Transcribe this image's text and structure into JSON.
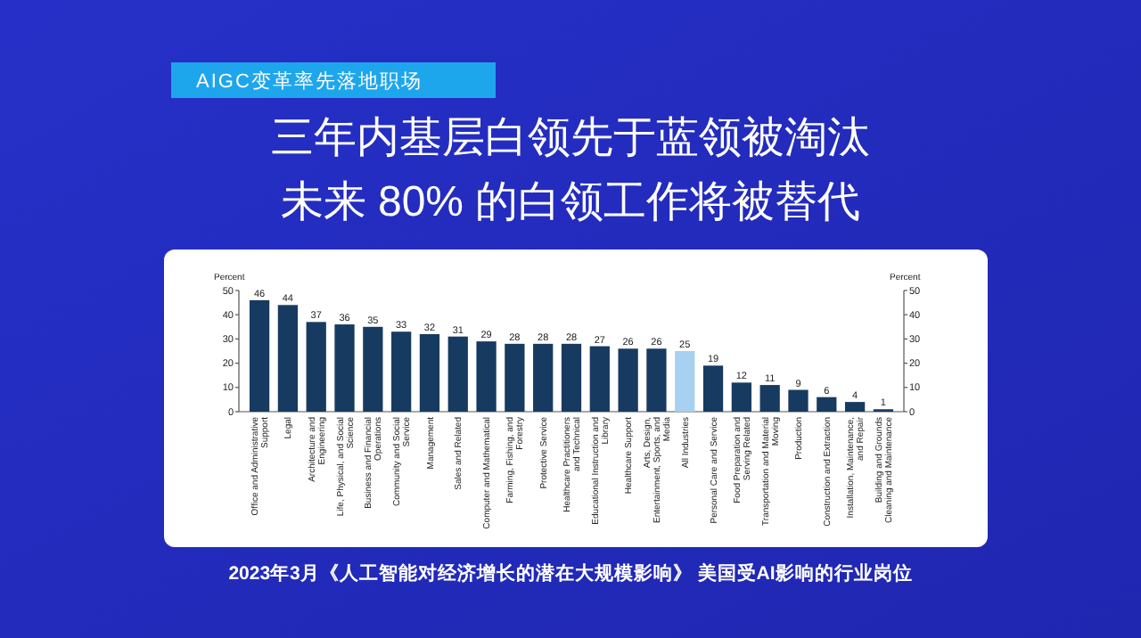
{
  "chart_data": {
    "type": "bar",
    "title": "三年内基层白领先于蓝领被淘汰",
    "subtitle": "未来 80% 的白领工作将被替代",
    "annotations": [
      "AIGC变革率先落地职场",
      "2023年3月《人工智能对经济增长的潜在大规模影响》 美国受AI影响的行业岗位"
    ],
    "ylabel": "Percent",
    "y2label": "Percent",
    "categories": [
      "Office and Administrative Support",
      "Legal",
      "Architecture and Engineering",
      "Life, Physical, and Social Science",
      "Business and Financial Operations",
      "Community and Social Service",
      "Management",
      "Sales and Related",
      "Computer and Mathematical",
      "Farming, Fishing, and Forestry",
      "Protective Service",
      "Healthcare Practitioners and Technical",
      "Educational Instruction and Library",
      "Healthcare Support",
      "Arts, Design, Entertainment, Sports, and Media",
      "All Industries",
      "Personal Care and Service",
      "Food Preparation and Serving Related",
      "Transportation and Material Moving",
      "Production",
      "Construction and Extraction",
      "Installation, Maintenance, and Repair",
      "Building and Grounds Cleaning and Maintenance"
    ],
    "values": [
      46,
      44,
      37,
      36,
      35,
      33,
      32,
      31,
      29,
      28,
      28,
      28,
      27,
      26,
      26,
      25,
      19,
      12,
      11,
      9,
      6,
      4,
      1
    ],
    "colors": [
      "#173a60",
      "#173a60",
      "#173a60",
      "#173a60",
      "#173a60",
      "#173a60",
      "#173a60",
      "#173a60",
      "#173a60",
      "#173a60",
      "#173a60",
      "#173a60",
      "#173a60",
      "#173a60",
      "#173a60",
      "#a8d0f0",
      "#173a60",
      "#173a60",
      "#173a60",
      "#173a60",
      "#173a60",
      "#173a60",
      "#173a60"
    ],
    "ylim": [
      0,
      50
    ],
    "yticks": [
      0,
      10,
      20,
      30,
      40,
      50
    ],
    "y2lim": [
      0,
      50
    ],
    "y2ticks": [
      0,
      10,
      20,
      30,
      40,
      50
    ],
    "data_labels": true
  }
}
